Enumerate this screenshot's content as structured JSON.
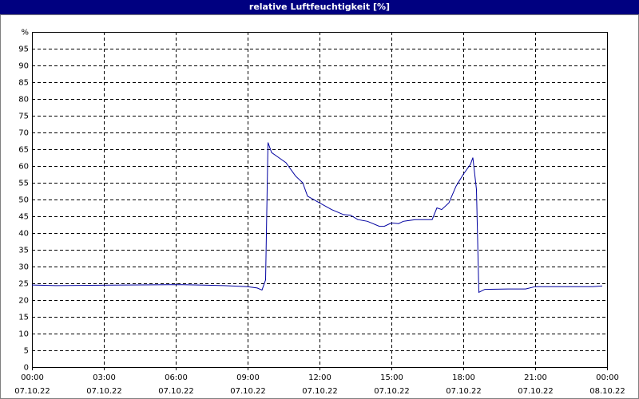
{
  "chart_data": {
    "type": "line",
    "title": "relative Luftfeuchtigkeit [%]",
    "x": [
      0,
      1,
      5.7,
      6.3,
      8,
      9.0,
      9.4,
      9.6,
      9.75,
      9.85,
      10.0,
      10.3,
      10.6,
      11,
      11.3,
      11.5,
      12,
      12.5,
      13,
      13.3,
      13.6,
      14,
      14.5,
      14.7,
      15,
      15.3,
      15.5,
      16,
      16.7,
      16.9,
      17.1,
      17.4,
      17.7,
      18,
      18.3,
      18.4,
      18.55,
      18.65,
      18.9,
      20,
      20.6,
      21,
      23.4,
      23.8
    ],
    "series": [
      {
        "name": "relative Luftfeuchtigkeit",
        "color": "#0000a0",
        "values": [
          24.5,
          24.3,
          24.6,
          24.6,
          24.3,
          24.0,
          23.6,
          23,
          26,
          67,
          64,
          62.5,
          61,
          57,
          55,
          51,
          49,
          47,
          45.5,
          45.3,
          44,
          43.5,
          42,
          42,
          43,
          42.8,
          43.5,
          44,
          44,
          47.5,
          47,
          49,
          54,
          57.5,
          60.5,
          62.5,
          53,
          22.3,
          23.2,
          23.3,
          23.3,
          24,
          24,
          24.2
        ]
      }
    ],
    "xlim": [
      0,
      24
    ],
    "ylim": [
      0,
      100
    ],
    "xticks": [
      {
        "value": 0,
        "label": [
          "00:00",
          "07.10.22"
        ]
      },
      {
        "value": 3,
        "label": [
          "03:00",
          "07.10.22"
        ]
      },
      {
        "value": 6,
        "label": [
          "06:00",
          "07.10.22"
        ]
      },
      {
        "value": 9,
        "label": [
          "09:00",
          "07.10.22"
        ]
      },
      {
        "value": 12,
        "label": [
          "12:00",
          "07.10.22"
        ]
      },
      {
        "value": 15,
        "label": [
          "15:00",
          "07.10.22"
        ]
      },
      {
        "value": 18,
        "label": [
          "18:00",
          "07.10.22"
        ]
      },
      {
        "value": 21,
        "label": [
          "21:00",
          "07.10.22"
        ]
      },
      {
        "value": 24,
        "label": [
          "00:00",
          "08.10.22"
        ]
      }
    ],
    "yticks": [
      0,
      5,
      10,
      15,
      20,
      25,
      30,
      35,
      40,
      45,
      50,
      55,
      60,
      65,
      70,
      75,
      80,
      85,
      90,
      95,
      {
        "value": 100,
        "label": "%"
      }
    ],
    "grid": true
  }
}
